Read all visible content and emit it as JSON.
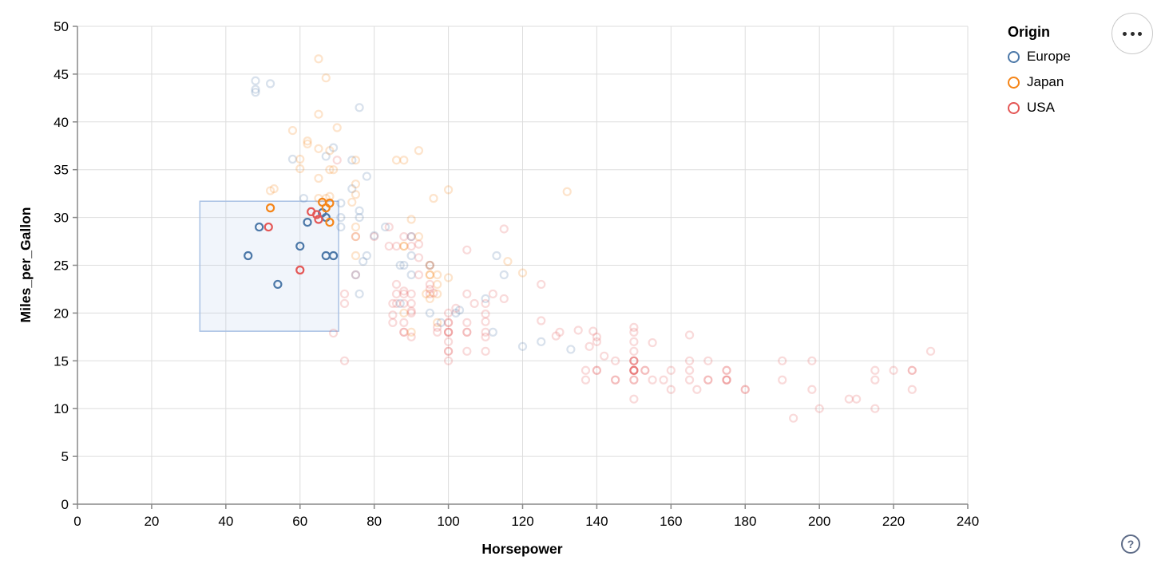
{
  "chart_data": {
    "type": "scatter",
    "title": "",
    "xlabel": "Horsepower",
    "ylabel": "Miles_per_Gallon",
    "x_domain": [
      0,
      240
    ],
    "y_domain": [
      0,
      50
    ],
    "x_ticks": [
      0,
      20,
      40,
      60,
      80,
      100,
      120,
      140,
      160,
      180,
      200,
      220,
      240
    ],
    "y_ticks": [
      0,
      5,
      10,
      15,
      20,
      25,
      30,
      35,
      40,
      45,
      50
    ],
    "grid": true,
    "mark": {
      "shape": "open-circle",
      "radius": 4.5,
      "stroke_width": 2.2,
      "unselected_opacity": 0.22
    },
    "legend": {
      "title": "Origin",
      "position": "top-right",
      "items": [
        {
          "label": "Europe",
          "color": "#4c78a8"
        },
        {
          "label": "Japan",
          "color": "#f58518"
        },
        {
          "label": "USA",
          "color": "#e45756"
        }
      ]
    },
    "origin_colors": {
      "E": "#4c78a8",
      "J": "#f58518",
      "U": "#e45756"
    },
    "brush_selection": {
      "x": [
        33,
        70.4
      ],
      "y": [
        18.1,
        31.7
      ],
      "fill": "#b3c9e8",
      "fill_opacity": 0.18,
      "stroke": "#a9c1e4"
    },
    "point_encoding": "[Horsepower, Miles_per_Gallon, Origin(E|J|U), selected(1)=inside brush]",
    "points": [
      [
        46,
        26,
        "E",
        1
      ],
      [
        49,
        29,
        "E",
        1
      ],
      [
        54,
        23,
        "E",
        1
      ],
      [
        60,
        27,
        "E",
        1
      ],
      [
        62,
        29.5,
        "E",
        1
      ],
      [
        66,
        30.5,
        "E",
        1
      ],
      [
        67,
        30,
        "E",
        1
      ],
      [
        67,
        26,
        "E",
        1
      ],
      [
        69,
        26,
        "E",
        1
      ],
      [
        52,
        31,
        "J",
        1
      ],
      [
        66,
        31.6,
        "J",
        1
      ],
      [
        67,
        31,
        "J",
        1
      ],
      [
        68,
        31.5,
        "J",
        1
      ],
      [
        68,
        29.5,
        "J",
        1
      ],
      [
        51.5,
        29,
        "U",
        1
      ],
      [
        60,
        24.5,
        "U",
        1
      ],
      [
        63,
        30.6,
        "U",
        1
      ],
      [
        64.5,
        30.3,
        "U",
        1
      ],
      [
        65,
        29.8,
        "U",
        1
      ],
      [
        130,
        18,
        "U"
      ],
      [
        165,
        15,
        "U"
      ],
      [
        150,
        18,
        "U"
      ],
      [
        150,
        16,
        "U"
      ],
      [
        140,
        17,
        "U"
      ],
      [
        198,
        15,
        "U"
      ],
      [
        220,
        14,
        "U"
      ],
      [
        215,
        14,
        "U"
      ],
      [
        225,
        14,
        "U"
      ],
      [
        190,
        15,
        "U"
      ],
      [
        170,
        15,
        "U"
      ],
      [
        160,
        14,
        "U"
      ],
      [
        150,
        15,
        "U"
      ],
      [
        225,
        14,
        "U"
      ],
      [
        95,
        22,
        "U"
      ],
      [
        97,
        18,
        "U"
      ],
      [
        85,
        21,
        "U"
      ],
      [
        90,
        21,
        "U"
      ],
      [
        215,
        10,
        "U"
      ],
      [
        200,
        10,
        "U"
      ],
      [
        210,
        11,
        "U"
      ],
      [
        193,
        9,
        "U"
      ],
      [
        90,
        28,
        "U"
      ],
      [
        100,
        19,
        "U"
      ],
      [
        105,
        16,
        "U"
      ],
      [
        100,
        17,
        "U"
      ],
      [
        88,
        19,
        "U"
      ],
      [
        100,
        18,
        "U"
      ],
      [
        165,
        14,
        "U"
      ],
      [
        175,
        14,
        "U"
      ],
      [
        153,
        14,
        "U"
      ],
      [
        150,
        14,
        "U"
      ],
      [
        180,
        12,
        "U"
      ],
      [
        170,
        13,
        "U"
      ],
      [
        175,
        13,
        "U"
      ],
      [
        110,
        18,
        "U"
      ],
      [
        72,
        22,
        "U"
      ],
      [
        100,
        19,
        "U"
      ],
      [
        88,
        18,
        "U"
      ],
      [
        86,
        23,
        "U"
      ],
      [
        90,
        20,
        "U"
      ],
      [
        86,
        21,
        "U"
      ],
      [
        165,
        13,
        "U"
      ],
      [
        175,
        14,
        "U"
      ],
      [
        150,
        15,
        "U"
      ],
      [
        153,
        14,
        "U"
      ],
      [
        150,
        17,
        "U"
      ],
      [
        208,
        11,
        "U"
      ],
      [
        155,
        13,
        "U"
      ],
      [
        160,
        12,
        "U"
      ],
      [
        190,
        13,
        "U"
      ],
      [
        150,
        15,
        "U"
      ],
      [
        145,
        13,
        "U"
      ],
      [
        137,
        13,
        "U"
      ],
      [
        150,
        14,
        "U"
      ],
      [
        86,
        22,
        "U"
      ],
      [
        80,
        28,
        "U"
      ],
      [
        175,
        13,
        "U"
      ],
      [
        150,
        14,
        "U"
      ],
      [
        145,
        13,
        "U"
      ],
      [
        137,
        14,
        "U"
      ],
      [
        150,
        15,
        "U"
      ],
      [
        198,
        12,
        "U"
      ],
      [
        150,
        13,
        "U"
      ],
      [
        158,
        13,
        "U"
      ],
      [
        150,
        14,
        "U"
      ],
      [
        215,
        13,
        "U"
      ],
      [
        225,
        12,
        "U"
      ],
      [
        175,
        13,
        "U"
      ],
      [
        105,
        18,
        "U"
      ],
      [
        100,
        16,
        "U"
      ],
      [
        100,
        18,
        "U"
      ],
      [
        88,
        18,
        "U"
      ],
      [
        95,
        23,
        "U"
      ],
      [
        150,
        11,
        "U"
      ],
      [
        167,
        12,
        "U"
      ],
      [
        170,
        13,
        "U"
      ],
      [
        180,
        12,
        "U"
      ],
      [
        100,
        18,
        "U"
      ],
      [
        72,
        21,
        "U"
      ],
      [
        85,
        19,
        "U"
      ],
      [
        107,
        21,
        "U"
      ],
      [
        145,
        15,
        "U"
      ],
      [
        230,
        16,
        "U"
      ],
      [
        75,
        24,
        "U"
      ],
      [
        100,
        16,
        "U"
      ],
      [
        110,
        16,
        "U"
      ],
      [
        105,
        18,
        "U"
      ],
      [
        140,
        14,
        "U"
      ],
      [
        150,
        13,
        "U"
      ],
      [
        150,
        14,
        "U"
      ],
      [
        140,
        14,
        "U"
      ],
      [
        150,
        14,
        "U"
      ],
      [
        75,
        28,
        "U"
      ],
      [
        100,
        15,
        "U"
      ],
      [
        90,
        22,
        "U"
      ],
      [
        95,
        22.5,
        "U"
      ],
      [
        110,
        17.5,
        "U"
      ],
      [
        105,
        22,
        "U"
      ],
      [
        100,
        20,
        "U"
      ],
      [
        105,
        19,
        "U"
      ],
      [
        102,
        20.5,
        "U"
      ],
      [
        88,
        21,
        "U"
      ],
      [
        97,
        18.5,
        "U"
      ],
      [
        90,
        17.5,
        "U"
      ],
      [
        110,
        21,
        "U"
      ],
      [
        95,
        25,
        "U"
      ],
      [
        129,
        17.6,
        "U"
      ],
      [
        138,
        16.5,
        "U"
      ],
      [
        135,
        18.2,
        "U"
      ],
      [
        155,
        16.9,
        "U"
      ],
      [
        142,
        15.5,
        "U"
      ],
      [
        125,
        19.2,
        "U"
      ],
      [
        150,
        18.5,
        "U"
      ],
      [
        165,
        17.7,
        "U"
      ],
      [
        139,
        18.1,
        "U"
      ],
      [
        140,
        17.5,
        "U"
      ],
      [
        115,
        21.5,
        "U"
      ],
      [
        85,
        19.8,
        "U"
      ],
      [
        88,
        22.3,
        "U"
      ],
      [
        90,
        20.2,
        "U"
      ],
      [
        110,
        19.1,
        "U"
      ],
      [
        125,
        23,
        "U"
      ],
      [
        110,
        19.9,
        "U"
      ],
      [
        115,
        28.8,
        "U"
      ],
      [
        105,
        26.6,
        "U"
      ],
      [
        92,
        25.8,
        "U"
      ],
      [
        90,
        27,
        "U"
      ],
      [
        92,
        27.2,
        "U"
      ],
      [
        92,
        24,
        "U"
      ],
      [
        84,
        29,
        "U"
      ],
      [
        84,
        27,
        "U"
      ],
      [
        88,
        28,
        "U"
      ],
      [
        70,
        36,
        "U"
      ],
      [
        86,
        27,
        "U"
      ],
      [
        88,
        22,
        "U"
      ],
      [
        112,
        22,
        "U"
      ],
      [
        96,
        22.1,
        "U"
      ],
      [
        72,
        15,
        "U"
      ],
      [
        69,
        17.9,
        "U"
      ],
      [
        87,
        25,
        "E"
      ],
      [
        90,
        24,
        "E"
      ],
      [
        95,
        25,
        "E"
      ],
      [
        113,
        26,
        "E"
      ],
      [
        71,
        30,
        "E"
      ],
      [
        76,
        30,
        "E"
      ],
      [
        90,
        28,
        "E"
      ],
      [
        76,
        22,
        "E"
      ],
      [
        87,
        21,
        "E"
      ],
      [
        112,
        18,
        "E"
      ],
      [
        98,
        19,
        "E"
      ],
      [
        115,
        24,
        "E"
      ],
      [
        90,
        26,
        "E"
      ],
      [
        75,
        24,
        "E"
      ],
      [
        95,
        20,
        "E"
      ],
      [
        83,
        29,
        "E"
      ],
      [
        78,
        26,
        "E"
      ],
      [
        61,
        32,
        "E"
      ],
      [
        48,
        43.1,
        "E"
      ],
      [
        48,
        43.4,
        "E"
      ],
      [
        48,
        44.3,
        "E"
      ],
      [
        52,
        44,
        "E"
      ],
      [
        77,
        25.4,
        "E"
      ],
      [
        120,
        16.5,
        "E"
      ],
      [
        125,
        17,
        "E"
      ],
      [
        76,
        30.7,
        "E"
      ],
      [
        71,
        31.5,
        "E"
      ],
      [
        74,
        33,
        "E"
      ],
      [
        74,
        36,
        "E"
      ],
      [
        78,
        34.3,
        "E"
      ],
      [
        103,
        20.3,
        "E"
      ],
      [
        67,
        36.4,
        "E"
      ],
      [
        133,
        16.2,
        "E"
      ],
      [
        80,
        28.1,
        "E"
      ],
      [
        110,
        21.5,
        "E"
      ],
      [
        102,
        20,
        "E"
      ],
      [
        71,
        29,
        "E"
      ],
      [
        88,
        25,
        "E"
      ],
      [
        58,
        36.1,
        "E"
      ],
      [
        69,
        37.3,
        "E"
      ],
      [
        76,
        41.5,
        "E"
      ],
      [
        95,
        24,
        "J"
      ],
      [
        88,
        27,
        "J"
      ],
      [
        88,
        27,
        "J"
      ],
      [
        95,
        25,
        "J"
      ],
      [
        95,
        24,
        "J"
      ],
      [
        69,
        35,
        "J"
      ],
      [
        65,
        32,
        "J"
      ],
      [
        92,
        28,
        "J"
      ],
      [
        97,
        23,
        "J"
      ],
      [
        88,
        20,
        "J"
      ],
      [
        94,
        22,
        "J"
      ],
      [
        90,
        18,
        "J"
      ],
      [
        97,
        19,
        "J"
      ],
      [
        97,
        24,
        "J"
      ],
      [
        75,
        29,
        "J"
      ],
      [
        53,
        33,
        "J"
      ],
      [
        75,
        28,
        "J"
      ],
      [
        52,
        32.8,
        "J"
      ],
      [
        70,
        39.4,
        "J"
      ],
      [
        60,
        36.1,
        "J"
      ],
      [
        75,
        26,
        "J"
      ],
      [
        97,
        22,
        "J"
      ],
      [
        95,
        21.5,
        "J"
      ],
      [
        75,
        33.5,
        "J"
      ],
      [
        58,
        39.1,
        "J"
      ],
      [
        62,
        37.7,
        "J"
      ],
      [
        68,
        37,
        "J"
      ],
      [
        65,
        46.6,
        "J"
      ],
      [
        67,
        44.6,
        "J"
      ],
      [
        65,
        40.8,
        "J"
      ],
      [
        65,
        37.2,
        "J"
      ],
      [
        88,
        36,
        "J"
      ],
      [
        86,
        36,
        "J"
      ],
      [
        120,
        24.2,
        "J"
      ],
      [
        116,
        25.4,
        "J"
      ],
      [
        100,
        23.7,
        "J"
      ],
      [
        96,
        32,
        "J"
      ],
      [
        132,
        32.7,
        "J"
      ],
      [
        90,
        29.8,
        "J"
      ],
      [
        74,
        31.6,
        "J"
      ],
      [
        92,
        37,
        "J"
      ],
      [
        75,
        32.4,
        "J"
      ],
      [
        100,
        32.9,
        "J"
      ],
      [
        75,
        36,
        "J"
      ],
      [
        67,
        32,
        "J"
      ],
      [
        68,
        35,
        "J"
      ],
      [
        60,
        35.1,
        "J"
      ],
      [
        62,
        38,
        "J"
      ],
      [
        65,
        34.1,
        "J"
      ],
      [
        68,
        32.2,
        "J"
      ]
    ],
    "axis_style": {
      "grid_color": "#dddddd",
      "domain_color": "#888888",
      "tick_color": "#888888",
      "label_color": "#000000"
    }
  },
  "controls": {
    "menu_button": {
      "name": "chart actions menu"
    },
    "help_button": {
      "label": "?"
    }
  }
}
